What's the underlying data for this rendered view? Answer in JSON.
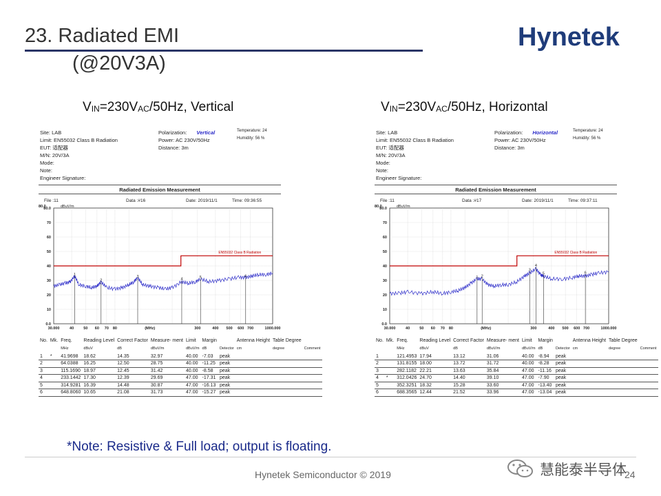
{
  "slide": {
    "title_line1": "23. Radiated EMI",
    "title_line2": "(@20V3A)",
    "note": "*Note: Resistive & Full load; output is floating.",
    "footer": "Hynetek Semiconductor © 2019",
    "page": "24",
    "logo": "Hynetek",
    "watermark": "慧能泰半导体"
  },
  "colors": {
    "title_rule": "#2a3566",
    "logo": "#1f3c7a",
    "note": "#1a2a8a",
    "limit": "#c00000",
    "trace": "#2a2ac8"
  },
  "captions": {
    "left": {
      "v": "V",
      "sub1": "IN",
      "mid": "=230V",
      "sub2": "AC",
      "rest": "/50Hz, Vertical"
    },
    "right": {
      "v": "V",
      "sub1": "IN",
      "mid": "=230V",
      "sub2": "AC",
      "rest": "/50Hz, Horizontal"
    }
  },
  "reports": [
    {
      "site": "Site: LAB",
      "limit": "Limit: EN55032 Class B Radiation",
      "eut": "EUT: 适配器",
      "mn": "M/N:   20V/3A",
      "mode": "Mode:",
      "note": "Note:",
      "eng": "Engineer Signature:",
      "polarization_label": "Polarization:",
      "polarization": "Vertical",
      "power": "Power:      AC 230V/50Hz",
      "distance": "Distance:  3m",
      "temperature": "Temperature:         24",
      "humidity": "Humidity:          56 %",
      "caption": "Radiated Emission Measurement",
      "file": "File :11",
      "data": "Data :#16",
      "date": "Date: 2019/11/1",
      "time": "Time: 09:36:55"
    },
    {
      "site": "Site: LAB",
      "limit": "Limit: EN55032 Class B Radiation",
      "eut": "EUT: 适配器",
      "mn": "M/N:   20V/3A",
      "mode": "Mode:",
      "note": "Note:",
      "eng": "Engineer Signature:",
      "polarization_label": "Polarization:",
      "polarization": "Horizontal",
      "power": "Power:      AC 230V/50Hz",
      "distance": "Distance:  3m",
      "temperature": "Temperature:         24",
      "humidity": "Humidity:          56 %",
      "caption": "Radiated Emission Measurement",
      "file": "File :11",
      "data": "Data :#17",
      "date": "Date: 2019/11/1",
      "time": "Time: 09:37:11"
    }
  ],
  "table": {
    "headers": [
      "No.",
      "Mk.",
      "Freq.",
      "Reading Level",
      "Correct Factor",
      "Measure- ment",
      "Limit",
      "Margin",
      "",
      "Antenna Height",
      "Table Degree",
      ""
    ],
    "units": [
      "",
      "",
      "MHz",
      "dBuV",
      "dB",
      "dBuV/m",
      "dBuV/m",
      "dB",
      "Detector",
      "cm",
      "degree",
      "Comment"
    ]
  },
  "chart_data": [
    {
      "type": "line",
      "title": "",
      "xlabel": "(MHz)",
      "ylabel": "dBuV/m",
      "xscale": "log",
      "xlim": [
        30,
        1000
      ],
      "ylim": [
        0,
        80
      ],
      "y_ticks": [
        "80.0",
        "70",
        "60",
        "50",
        "40",
        "30",
        "20",
        "10",
        "0.0"
      ],
      "x_ticks": [
        "30.000",
        "40",
        "50",
        "60",
        "70",
        "80",
        "(MHz)",
        "300",
        "400",
        "500",
        "600",
        "700",
        "1000.000"
      ],
      "limit_label": "EN55032 Class B Radiation",
      "limit": [
        {
          "x": 30,
          "y": 40
        },
        {
          "x": 230,
          "y": 40
        },
        {
          "x": 230,
          "y": 47
        },
        {
          "x": 1000,
          "y": 47
        }
      ],
      "markers": [
        {
          "no": "1",
          "mk": "*",
          "freq": "41.9698",
          "reading": "18.62",
          "correct": "14.35",
          "measurement": "32.97",
          "limit": "40.00",
          "margin": "-7.03",
          "detector": "peak"
        },
        {
          "no": "2",
          "mk": "",
          "freq": "64.0388",
          "reading": "16.25",
          "correct": "12.50",
          "measurement": "28.75",
          "limit": "40.00",
          "margin": "-11.25",
          "detector": "peak"
        },
        {
          "no": "3",
          "mk": "",
          "freq": "115.1690",
          "reading": "18.97",
          "correct": "12.45",
          "measurement": "31.42",
          "limit": "40.00",
          "margin": "-8.58",
          "detector": "peak"
        },
        {
          "no": "4",
          "mk": "",
          "freq": "233.1442",
          "reading": "17.30",
          "correct": "12.39",
          "measurement": "29.69",
          "limit": "47.00",
          "margin": "-17.31",
          "detector": "peak"
        },
        {
          "no": "5",
          "mk": "",
          "freq": "314.9281",
          "reading": "16.39",
          "correct": "14.48",
          "measurement": "30.87",
          "limit": "47.00",
          "margin": "-16.13",
          "detector": "peak"
        },
        {
          "no": "6",
          "mk": "",
          "freq": "648.8060",
          "reading": "10.65",
          "correct": "21.08",
          "measurement": "31.73",
          "limit": "47.00",
          "margin": "-15.27",
          "detector": "peak"
        }
      ],
      "trace": [
        [
          30,
          26
        ],
        [
          33,
          27
        ],
        [
          36,
          28
        ],
        [
          39,
          29
        ],
        [
          42,
          33
        ],
        [
          45,
          27
        ],
        [
          50,
          26
        ],
        [
          55,
          25
        ],
        [
          60,
          26
        ],
        [
          64,
          29
        ],
        [
          70,
          25
        ],
        [
          80,
          24
        ],
        [
          90,
          25
        ],
        [
          100,
          27
        ],
        [
          108,
          29
        ],
        [
          115,
          32
        ],
        [
          125,
          27
        ],
        [
          140,
          26
        ],
        [
          160,
          25
        ],
        [
          180,
          24
        ],
        [
          200,
          25
        ],
        [
          233,
          29
        ],
        [
          260,
          28
        ],
        [
          290,
          29
        ],
        [
          315,
          31
        ],
        [
          360,
          29
        ],
        [
          420,
          30
        ],
        [
          500,
          31
        ],
        [
          580,
          32
        ],
        [
          649,
          32
        ],
        [
          720,
          33
        ],
        [
          800,
          34
        ],
        [
          900,
          34
        ],
        [
          1000,
          35
        ]
      ]
    },
    {
      "type": "line",
      "title": "",
      "xlabel": "(MHz)",
      "ylabel": "dBuV/m",
      "xscale": "log",
      "xlim": [
        30,
        1000
      ],
      "ylim": [
        0,
        80
      ],
      "y_ticks": [
        "80.0",
        "70",
        "60",
        "50",
        "40",
        "30",
        "20",
        "10",
        "0.0"
      ],
      "x_ticks": [
        "30.000",
        "40",
        "50",
        "60",
        "70",
        "80",
        "(MHz)",
        "300",
        "400",
        "500",
        "600",
        "700",
        "1000.000"
      ],
      "limit_label": "EN55032 Class B Radiation",
      "limit": [
        {
          "x": 30,
          "y": 40
        },
        {
          "x": 230,
          "y": 40
        },
        {
          "x": 230,
          "y": 47
        },
        {
          "x": 1000,
          "y": 47
        }
      ],
      "markers": [
        {
          "no": "1",
          "mk": "",
          "freq": "121.4953",
          "reading": "17.94",
          "correct": "13.12",
          "measurement": "31.06",
          "limit": "40.00",
          "margin": "-8.94",
          "detector": "peak"
        },
        {
          "no": "2",
          "mk": "",
          "freq": "131.8155",
          "reading": "18.00",
          "correct": "13.72",
          "measurement": "31.72",
          "limit": "40.00",
          "margin": "-8.28",
          "detector": "peak"
        },
        {
          "no": "3",
          "mk": "",
          "freq": "282.1182",
          "reading": "22.21",
          "correct": "13.63",
          "measurement": "35.84",
          "limit": "47.00",
          "margin": "-11.16",
          "detector": "peak"
        },
        {
          "no": "4",
          "mk": "*",
          "freq": "312.0426",
          "reading": "24.70",
          "correct": "14.40",
          "measurement": "39.10",
          "limit": "47.00",
          "margin": "-7.90",
          "detector": "peak"
        },
        {
          "no": "5",
          "mk": "",
          "freq": "352.3251",
          "reading": "18.32",
          "correct": "15.28",
          "measurement": "33.60",
          "limit": "47.00",
          "margin": "-13.40",
          "detector": "peak"
        },
        {
          "no": "6",
          "mk": "",
          "freq": "688.3565",
          "reading": "12.44",
          "correct": "21.52",
          "measurement": "33.96",
          "limit": "47.00",
          "margin": "-13.04",
          "detector": "peak"
        }
      ],
      "trace": [
        [
          30,
          21
        ],
        [
          35,
          21
        ],
        [
          40,
          22
        ],
        [
          50,
          21
        ],
        [
          60,
          22
        ],
        [
          70,
          21
        ],
        [
          80,
          22
        ],
        [
          90,
          23
        ],
        [
          100,
          25
        ],
        [
          110,
          28
        ],
        [
          121,
          31
        ],
        [
          131,
          31
        ],
        [
          145,
          27
        ],
        [
          160,
          26
        ],
        [
          180,
          27
        ],
        [
          200,
          27
        ],
        [
          230,
          29
        ],
        [
          260,
          33
        ],
        [
          282,
          35
        ],
        [
          312,
          38
        ],
        [
          335,
          34
        ],
        [
          352,
          33
        ],
        [
          400,
          31
        ],
        [
          480,
          31
        ],
        [
          560,
          32
        ],
        [
          620,
          33
        ],
        [
          688,
          33
        ],
        [
          760,
          34
        ],
        [
          850,
          35
        ],
        [
          1000,
          36
        ]
      ]
    }
  ]
}
